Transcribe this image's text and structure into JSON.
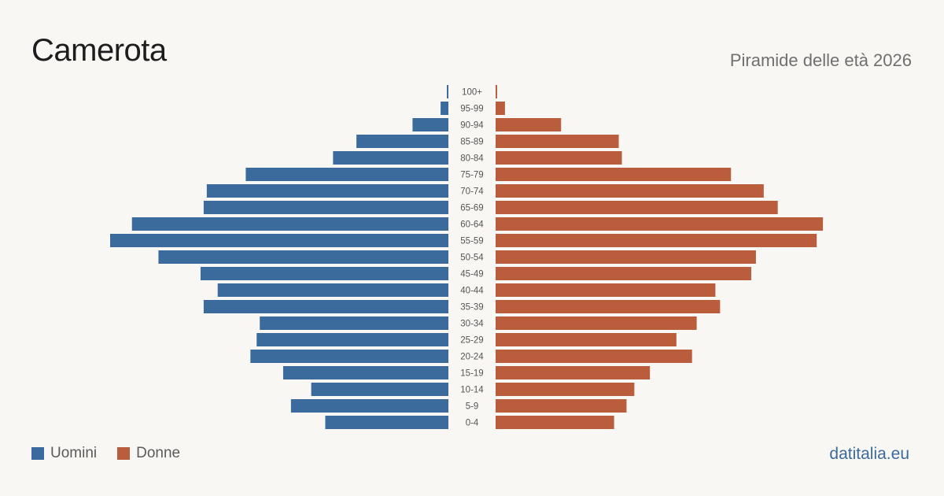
{
  "header": {
    "title": "Camerota",
    "subtitle": "Piramide delle età 2026"
  },
  "legend": {
    "male_label": "Uomini",
    "female_label": "Donne"
  },
  "brand": "datitalia.eu",
  "colors": {
    "male": "#3b6a9c",
    "female": "#b95d3c",
    "background": "#f9f7f3",
    "age_label": "#555555"
  },
  "chart_data": {
    "type": "bar",
    "orientation": "horizontal-pyramid",
    "categories": [
      "0-4",
      "5-9",
      "10-14",
      "15-19",
      "20-24",
      "25-29",
      "30-34",
      "35-39",
      "40-44",
      "45-49",
      "50-54",
      "55-59",
      "60-64",
      "65-69",
      "70-74",
      "75-79",
      "80-84",
      "85-89",
      "90-94",
      "95-99",
      "100+"
    ],
    "series": [
      {
        "name": "Uomini",
        "values": [
          79,
          101,
          88,
          106,
          127,
          123,
          121,
          157,
          148,
          159,
          186,
          217,
          203,
          157,
          155,
          130,
          74,
          59,
          23,
          5,
          1
        ]
      },
      {
        "name": "Donne",
        "values": [
          76,
          84,
          89,
          99,
          126,
          116,
          129,
          144,
          141,
          164,
          167,
          206,
          210,
          181,
          172,
          151,
          81,
          79,
          42,
          6,
          1
        ]
      }
    ],
    "xlim": [
      0,
      217
    ],
    "grid": false,
    "legend_position": "bottom-left"
  }
}
